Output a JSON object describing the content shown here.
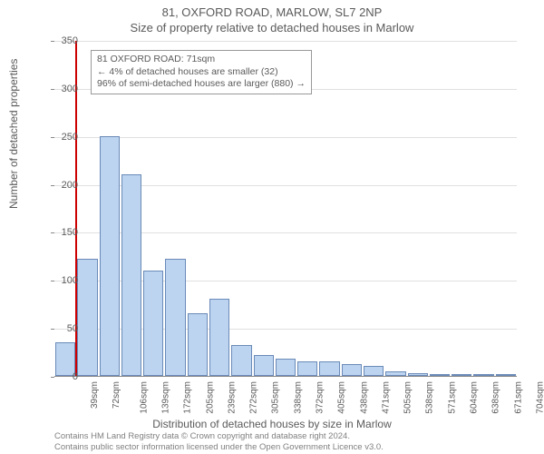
{
  "chart": {
    "type": "histogram",
    "title_main": "81, OXFORD ROAD, MARLOW, SL7 2NP",
    "title_sub": "Size of property relative to detached houses in Marlow",
    "y_label": "Number of detached properties",
    "x_label": "Distribution of detached houses by size in Marlow",
    "ylim": [
      0,
      350
    ],
    "ytick_step": 50,
    "background_color": "#ffffff",
    "grid_color": "#e0e0e0",
    "bar_fill": "#bcd4f0",
    "bar_border": "#6a8ab8",
    "marker_color": "#cc0000",
    "marker_x": 71,
    "x_start": 39,
    "x_step": 33.3,
    "x_labels": [
      "39sqm",
      "72sqm",
      "106sqm",
      "139sqm",
      "172sqm",
      "205sqm",
      "239sqm",
      "272sqm",
      "305sqm",
      "338sqm",
      "372sqm",
      "405sqm",
      "438sqm",
      "471sqm",
      "505sqm",
      "538sqm",
      "571sqm",
      "604sqm",
      "638sqm",
      "671sqm",
      "704sqm"
    ],
    "bars": [
      35,
      122,
      250,
      210,
      110,
      122,
      65,
      80,
      32,
      22,
      18,
      15,
      15,
      12,
      10,
      5,
      3,
      2,
      2,
      1,
      1
    ],
    "annotation": {
      "line1": "81 OXFORD ROAD: 71sqm",
      "line2": "← 4% of detached houses are smaller (32)",
      "line3": "96% of semi-detached houses are larger (880) →"
    },
    "attribution_line1": "Contains HM Land Registry data © Crown copyright and database right 2024.",
    "attribution_line2": "Contains public sector information licensed under the Open Government Licence v3.0."
  }
}
